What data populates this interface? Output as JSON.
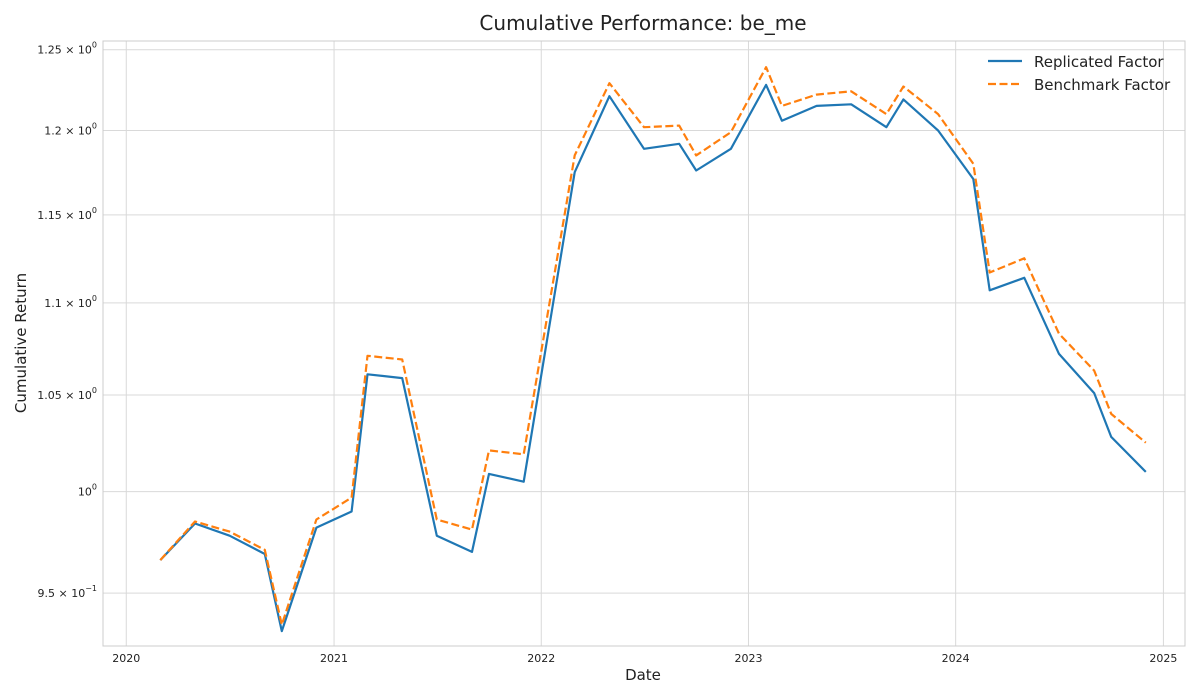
{
  "chart_data": {
    "type": "line",
    "title": "Cumulative Performance: be_me",
    "xlabel": "Date",
    "ylabel": "Cumulative Return",
    "y_scale": "log",
    "ylim": [
      0.925,
      1.2555
    ],
    "xlim": [
      "2019-11-21",
      "2025-02-08"
    ],
    "grid": true,
    "legend_position": "top-right",
    "x_ticks": [
      {
        "date": "2020-01-01",
        "label": "2020"
      },
      {
        "date": "2021-01-01",
        "label": "2021"
      },
      {
        "date": "2022-01-01",
        "label": "2022"
      },
      {
        "date": "2023-01-01",
        "label": "2023"
      },
      {
        "date": "2024-01-01",
        "label": "2024"
      },
      {
        "date": "2025-01-01",
        "label": "2025"
      }
    ],
    "y_ticks": [
      {
        "value": 0.95,
        "mantissa": "9.5",
        "exp": "−1"
      },
      {
        "value": 1.0,
        "mantissa": "",
        "exp": "0"
      },
      {
        "value": 1.05,
        "mantissa": "1.05",
        "exp": "0"
      },
      {
        "value": 1.1,
        "mantissa": "1.1",
        "exp": "0"
      },
      {
        "value": 1.15,
        "mantissa": "1.15",
        "exp": "0"
      },
      {
        "value": 1.2,
        "mantissa": "1.2",
        "exp": "0"
      },
      {
        "value": 1.25,
        "mantissa": "1.25",
        "exp": "0"
      }
    ],
    "x": [
      "2020-03-01",
      "2020-05-01",
      "2020-07-01",
      "2020-09-01",
      "2020-10-01",
      "2020-12-01",
      "2021-02-01",
      "2021-03-01",
      "2021-05-01",
      "2021-07-01",
      "2021-09-01",
      "2021-10-01",
      "2021-12-01",
      "2022-03-01",
      "2022-05-01",
      "2022-07-01",
      "2022-09-01",
      "2022-10-01",
      "2022-12-01",
      "2023-02-01",
      "2023-03-01",
      "2023-05-01",
      "2023-07-01",
      "2023-09-01",
      "2023-10-01",
      "2023-12-01",
      "2024-02-01",
      "2024-03-01",
      "2024-05-01",
      "2024-07-01",
      "2024-09-01",
      "2024-10-01",
      "2024-12-01"
    ],
    "series": [
      {
        "name": "Replicated Factor",
        "color": "#1f77b4",
        "dash": "solid",
        "values": [
          0.966,
          0.984,
          0.978,
          0.969,
          0.932,
          0.982,
          0.99,
          1.061,
          1.059,
          0.978,
          0.97,
          1.009,
          1.005,
          1.175,
          1.221,
          1.189,
          1.192,
          1.176,
          1.189,
          1.228,
          1.206,
          1.215,
          1.216,
          1.202,
          1.219,
          1.2,
          1.171,
          1.107,
          1.114,
          1.072,
          1.051,
          1.028,
          1.01
        ]
      },
      {
        "name": "Benchmark Factor",
        "color": "#ff7f0e",
        "dash": "dashed",
        "values": [
          0.966,
          0.985,
          0.98,
          0.971,
          0.935,
          0.986,
          0.997,
          1.071,
          1.069,
          0.986,
          0.981,
          1.021,
          1.019,
          1.185,
          1.229,
          1.202,
          1.203,
          1.185,
          1.199,
          1.239,
          1.215,
          1.222,
          1.224,
          1.21,
          1.227,
          1.21,
          1.18,
          1.117,
          1.125,
          1.083,
          1.063,
          1.04,
          1.025
        ]
      }
    ]
  }
}
